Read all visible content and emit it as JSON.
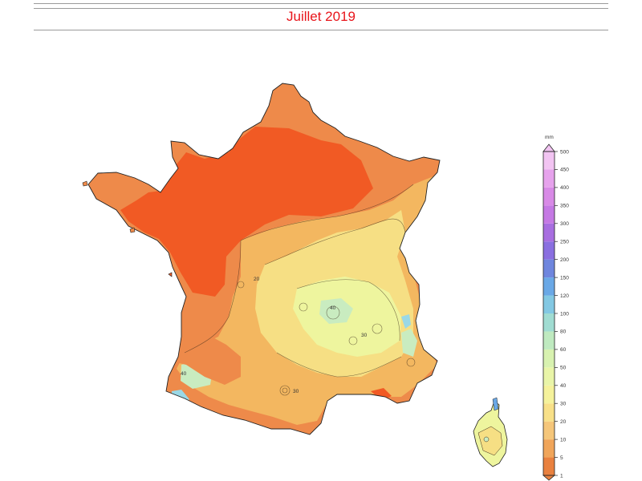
{
  "header": {
    "title": "Juillet 2019"
  },
  "legend": {
    "unit": "mm",
    "ticks": [
      "1",
      "5",
      "10",
      "20",
      "30",
      "40",
      "50",
      "60",
      "80",
      "100",
      "120",
      "150",
      "200",
      "250",
      "300",
      "350",
      "400",
      "450",
      "500"
    ],
    "colors": [
      "#e9813f",
      "#f0a55a",
      "#f5c67a",
      "#f8e088",
      "#f5f29b",
      "#e9f5a8",
      "#d8f2b0",
      "#bfeac0",
      "#a0dcd2",
      "#83c8e3",
      "#6aa8e6",
      "#6f86de",
      "#8a6fe0",
      "#a86ee0",
      "#c579e4",
      "#d88ae6",
      "#e6a2ec",
      "#f2c4f2"
    ]
  },
  "map": {
    "colors": {
      "very_dry": "#f15a24",
      "dry": "#ee8a4a",
      "mid": "#f3b760",
      "wet": "#f6df84",
      "wetter": "#eef59e",
      "very_wet": "#c9ecc0",
      "coast_blue": "#9ad8e6",
      "outline": "#222222"
    },
    "contour_labels": [
      "40",
      "30",
      "20",
      "40",
      "30"
    ]
  }
}
